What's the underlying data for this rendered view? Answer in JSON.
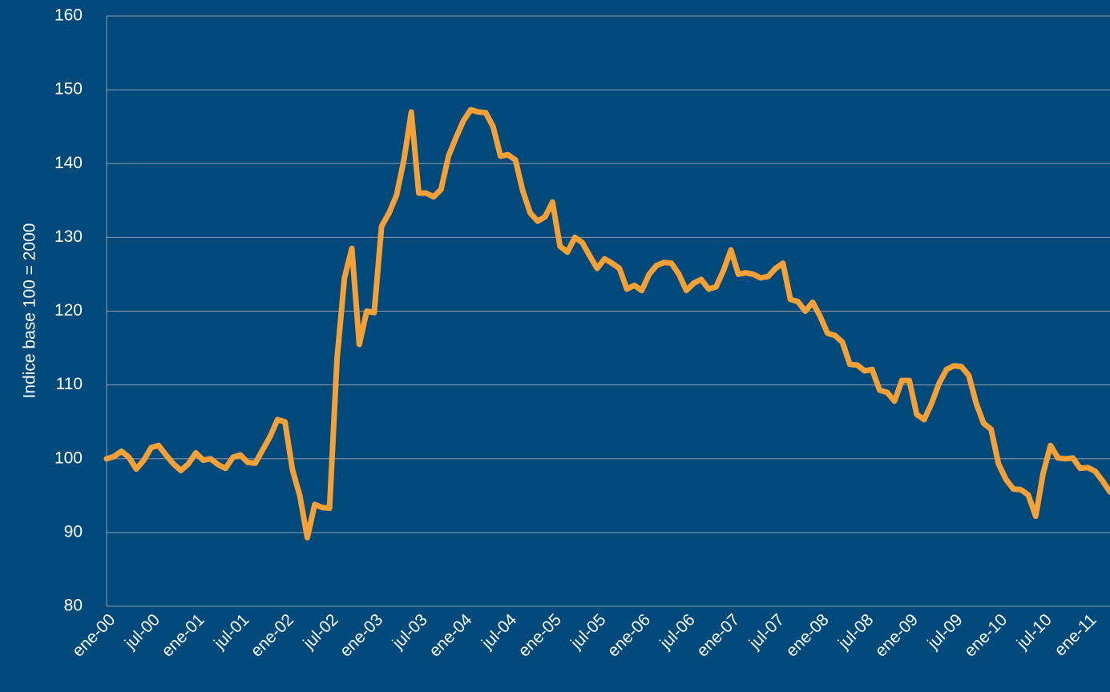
{
  "chart_data": {
    "type": "line",
    "ylabel": "Indice base 100 = 2000",
    "categories": [
      "ene-00",
      null,
      null,
      null,
      null,
      null,
      "jul-00",
      null,
      null,
      null,
      null,
      null,
      "ene-01",
      null,
      null,
      null,
      null,
      null,
      "jul-01",
      null,
      null,
      null,
      null,
      null,
      "ene-02",
      null,
      null,
      null,
      null,
      null,
      "jul-02",
      null,
      null,
      null,
      null,
      null,
      "ene-03",
      null,
      null,
      null,
      null,
      null,
      "jul-03",
      null,
      null,
      null,
      null,
      null,
      "ene-04",
      null,
      null,
      null,
      null,
      null,
      "jul-04",
      null,
      null,
      null,
      null,
      null,
      "ene-05",
      null,
      null,
      null,
      null,
      null,
      "jul-05",
      null,
      null,
      null,
      null,
      null,
      "ene-06",
      null,
      null,
      null,
      null,
      null,
      "jul-06",
      null,
      null,
      null,
      null,
      null,
      "ene-07",
      null,
      null,
      null,
      null,
      null,
      "jul-07",
      null,
      null,
      null,
      null,
      null,
      "ene-08",
      null,
      null,
      null,
      null,
      null,
      "jul-08",
      null,
      null,
      null,
      null,
      null,
      "ene-09",
      null,
      null,
      null,
      null,
      null,
      "jul-09",
      null,
      null,
      null,
      null,
      null,
      "ene-10",
      null,
      null,
      null,
      null,
      null,
      "jul-10",
      null,
      null,
      null,
      null,
      null,
      "ene-11",
      null,
      null,
      null
    ],
    "series": [
      {
        "name": "Indice",
        "color": "#f7a035",
        "values": [
          100,
          100.3,
          101,
          100.2,
          98.6,
          99.8,
          101.5,
          101.8,
          100.5,
          99.3,
          98.4,
          99.3,
          100.8,
          99.8,
          100,
          99.2,
          98.7,
          100.2,
          100.5,
          99.5,
          99.4,
          101.2,
          103,
          105.3,
          105,
          98.5,
          95,
          89.3,
          93.8,
          93.4,
          93.3,
          113.5,
          124.5,
          128.5,
          115.5,
          120,
          119.8,
          131.5,
          133.3,
          135.7,
          140.5,
          147,
          136,
          136,
          135.5,
          136.5,
          141,
          143.5,
          145.8,
          147.3,
          147,
          146.9,
          145,
          141,
          141.2,
          140.5,
          136.3,
          133.3,
          132.2,
          132.8,
          134.8,
          128.8,
          128,
          130,
          129.3,
          127.5,
          125.8,
          127.1,
          126.5,
          125.8,
          123,
          123.5,
          122.8,
          125,
          126.2,
          126.6,
          126.5,
          125,
          122.8,
          123.8,
          124.3,
          123,
          123.3,
          125.5,
          128.3,
          125,
          125.2,
          125,
          124.5,
          124.7,
          125.8,
          126.5,
          121.6,
          121.3,
          120,
          121.2,
          119.3,
          117,
          116.7,
          115.8,
          112.8,
          112.7,
          111.9,
          112.1,
          109.3,
          109,
          107.8,
          110.6,
          110.6,
          106,
          105.3,
          107.5,
          110.2,
          112.1,
          112.6,
          112.5,
          111.3,
          107.5,
          104.8,
          104,
          99.3,
          97.2,
          95.9,
          95.8,
          95.1,
          92.2,
          98,
          101.8,
          100.1,
          100,
          100.1,
          98.7,
          98.8,
          98.3,
          97,
          95.5
        ]
      }
    ],
    "ylim": [
      80,
      160
    ],
    "yticks": [
      80,
      90,
      100,
      110,
      120,
      130,
      140,
      150,
      160
    ],
    "grid": true,
    "background": "#00497b"
  }
}
